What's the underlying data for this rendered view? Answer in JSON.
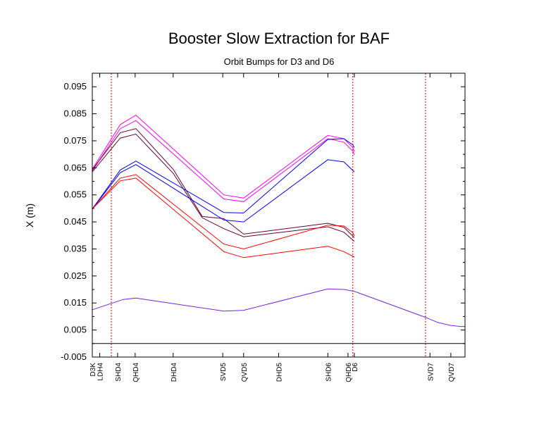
{
  "chart_data": {
    "type": "line",
    "title": "Booster Slow Extraction for BAF",
    "subtitle": "Orbit Bumps for D3 and D6",
    "xlabel": "",
    "ylabel": "X (m)",
    "xlim": [
      0,
      100
    ],
    "ylim": [
      -0.005,
      0.1
    ],
    "yticks": [
      -0.005,
      0.005,
      0.015,
      0.025,
      0.035,
      0.045,
      0.055,
      0.065,
      0.075,
      0.085,
      0.095
    ],
    "grid": false,
    "legend": "none",
    "zero_line": 0,
    "element_labels": [
      {
        "name": "D3K",
        "x": 0.0
      },
      {
        "name": "LDH4",
        "x": 2.0
      },
      {
        "name": "SHD4",
        "x": 6.8
      },
      {
        "name": "QHD4",
        "x": 11.5
      },
      {
        "name": "DHD4",
        "x": 21.7
      },
      {
        "name": "SVD5",
        "x": 35.0
      },
      {
        "name": "QVD5",
        "x": 40.6
      },
      {
        "name": "DHD5",
        "x": 50.0
      },
      {
        "name": "SHD6",
        "x": 63.2
      },
      {
        "name": "QHD6",
        "x": 68.6
      },
      {
        "name": "D6",
        "x": 70.3
      },
      {
        "name": "SVD7",
        "x": 90.6
      },
      {
        "name": "QVD7",
        "x": 96.2
      }
    ],
    "vlines": [
      5.1,
      69.9,
      89.4
    ],
    "series": [
      {
        "color": "#ff00ff",
        "x": [
          0,
          7.5,
          11.7,
          35.3,
          40.6,
          63.2,
          67.5,
          69.9,
          70.3
        ],
        "values": [
          0.0645,
          0.081,
          0.0845,
          0.055,
          0.0538,
          0.077,
          0.0758,
          0.0725,
          0.071
        ]
      },
      {
        "color": "#ff00ff",
        "x": [
          0,
          7.5,
          11.7,
          35.3,
          40.6,
          63.2,
          67.5,
          69.9,
          70.3
        ],
        "values": [
          0.0638,
          0.0795,
          0.0825,
          0.0535,
          0.0525,
          0.0758,
          0.0745,
          0.0712,
          0.0698
        ]
      },
      {
        "color": "#660033",
        "x": [
          0,
          7.5,
          11.7,
          21.7,
          29.5,
          35.3,
          40.6,
          63.2,
          67.5,
          70.3
        ],
        "values": [
          0.0643,
          0.078,
          0.0795,
          0.0645,
          0.047,
          0.0462,
          0.0405,
          0.0445,
          0.043,
          0.0392
        ]
      },
      {
        "color": "#660033",
        "x": [
          0,
          7.5,
          11.7,
          21.7,
          29.5,
          35.3,
          40.6,
          63.2,
          67.5,
          70.3
        ],
        "values": [
          0.0635,
          0.076,
          0.0775,
          0.063,
          0.0465,
          0.0425,
          0.0395,
          0.0432,
          0.0412,
          0.0378
        ]
      },
      {
        "color": "#0000ff",
        "x": [
          0,
          7.5,
          11.7,
          35.3,
          40.6,
          63.2,
          67.5,
          69.9,
          70.3
        ],
        "values": [
          0.0498,
          0.0642,
          0.0675,
          0.0485,
          0.0483,
          0.0755,
          0.0758,
          0.0735,
          0.0725
        ]
      },
      {
        "color": "#0000ff",
        "x": [
          0,
          7.5,
          11.7,
          35.3,
          40.6,
          63.2,
          67.5,
          70.3
        ],
        "values": [
          0.0498,
          0.0632,
          0.0662,
          0.0457,
          0.045,
          0.068,
          0.0672,
          0.0635
        ]
      },
      {
        "color": "#ff0000",
        "x": [
          0,
          7.5,
          11.7,
          35.3,
          40.6,
          63.2,
          67.5,
          69.9,
          70.3
        ],
        "values": [
          0.0498,
          0.0612,
          0.0625,
          0.0368,
          0.035,
          0.0438,
          0.0435,
          0.041,
          0.0398
        ]
      },
      {
        "color": "#ff0000",
        "x": [
          0,
          7.5,
          11.7,
          35.3,
          40.6,
          63.2,
          67.5,
          70.3
        ],
        "values": [
          0.0498,
          0.0602,
          0.0612,
          0.034,
          0.0318,
          0.036,
          0.034,
          0.032
        ]
      },
      {
        "color": "#7722dd",
        "x": [
          0,
          8.3,
          11.7,
          35.3,
          40.6,
          63.2,
          67.5,
          70.3,
          89.4,
          92.7,
          96.2,
          98.9,
          100
        ],
        "values": [
          0.0125,
          0.0163,
          0.0168,
          0.012,
          0.0123,
          0.0202,
          0.02,
          0.0193,
          0.0097,
          0.0078,
          0.0067,
          0.0063,
          0.0063
        ]
      }
    ]
  }
}
